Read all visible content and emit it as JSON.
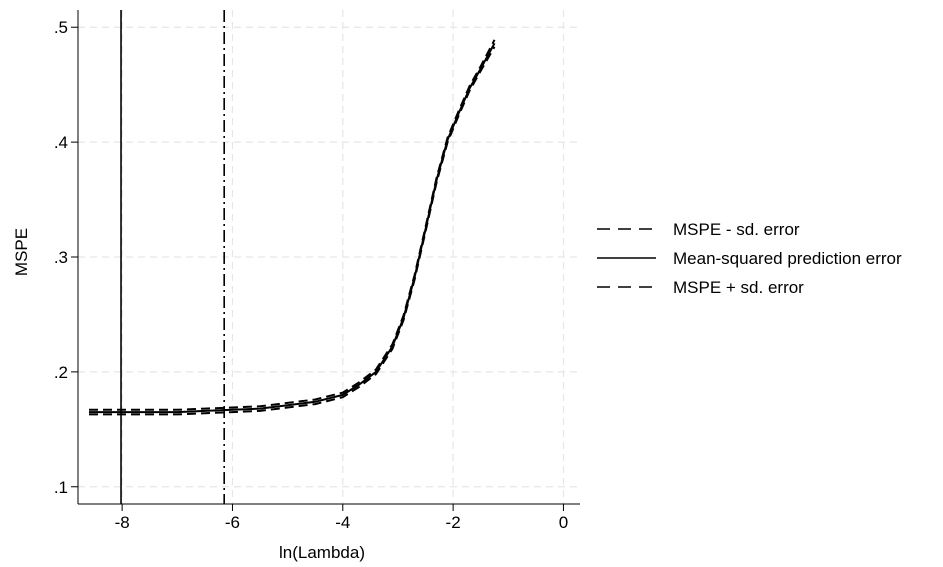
{
  "chart_data": {
    "type": "line",
    "title": "",
    "xlabel": "ln(Lambda)",
    "ylabel": "MSPE",
    "xlim": [
      -8.8,
      0.3
    ],
    "ylim": [
      0.085,
      0.515
    ],
    "grid": true,
    "legend_position": "right",
    "x_ticks": [
      {
        "value": -8,
        "label": "-8"
      },
      {
        "value": -6,
        "label": "-6"
      },
      {
        "value": -4,
        "label": "-4"
      },
      {
        "value": -2,
        "label": "-2"
      },
      {
        "value": 0,
        "label": "0"
      }
    ],
    "y_ticks": [
      {
        "value": 0.1,
        "label": ".1"
      },
      {
        "value": 0.2,
        "label": ".2"
      },
      {
        "value": 0.3,
        "label": ".3"
      },
      {
        "value": 0.4,
        "label": ".4"
      },
      {
        "value": 0.5,
        "label": ".5"
      }
    ],
    "x": [
      -8.6,
      -8.0,
      -7.5,
      -7.0,
      -6.5,
      -6.0,
      -5.5,
      -5.0,
      -4.5,
      -4.0,
      -3.7,
      -3.4,
      -3.1,
      -2.9,
      -2.7,
      -2.5,
      -2.3,
      -2.1,
      -1.9,
      -1.7,
      -1.5,
      -1.25
    ],
    "series": [
      {
        "name": "MSPE - sd. error",
        "style": "dashed",
        "values": [
          0.163,
          0.163,
          0.163,
          0.163,
          0.164,
          0.165,
          0.166,
          0.169,
          0.172,
          0.178,
          0.187,
          0.198,
          0.22,
          0.245,
          0.28,
          0.322,
          0.365,
          0.4,
          0.423,
          0.445,
          0.462,
          0.483
        ]
      },
      {
        "name": "Mean-squared prediction error",
        "style": "solid",
        "values": [
          0.165,
          0.165,
          0.165,
          0.165,
          0.166,
          0.167,
          0.168,
          0.171,
          0.174,
          0.18,
          0.189,
          0.2,
          0.222,
          0.247,
          0.282,
          0.324,
          0.367,
          0.402,
          0.425,
          0.447,
          0.464,
          0.486
        ]
      },
      {
        "name": "MSPE + sd. error",
        "style": "dashed",
        "values": [
          0.167,
          0.167,
          0.167,
          0.167,
          0.168,
          0.169,
          0.17,
          0.173,
          0.176,
          0.182,
          0.191,
          0.202,
          0.224,
          0.249,
          0.284,
          0.326,
          0.369,
          0.404,
          0.427,
          0.449,
          0.466,
          0.489
        ]
      }
    ],
    "reference_lines": [
      {
        "x": -8.02,
        "style": "solid"
      },
      {
        "x": -6.15,
        "style": "dashdot"
      }
    ],
    "colors": {
      "line": "#000000",
      "grid": "#e6e6e6",
      "background": "#ffffff"
    }
  }
}
